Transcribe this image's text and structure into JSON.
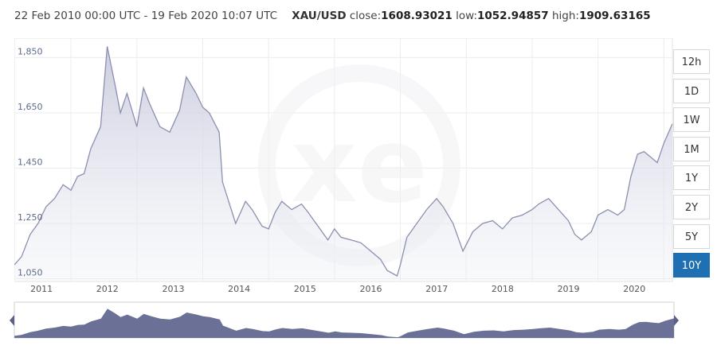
{
  "header": {
    "range": "22 Feb 2010 00:00 UTC - 19 Feb 2020 10:07 UTC",
    "symbol": "XAU/USD",
    "close_label": "close:",
    "close_value": "1608.93021",
    "low_label": "low:",
    "low_value": "1052.94857",
    "high_label": "high:",
    "high_value": "1909.63165"
  },
  "timeframes": [
    "12h",
    "1D",
    "1W",
    "1M",
    "1Y",
    "2Y",
    "5Y",
    "10Y"
  ],
  "active_timeframe": "10Y",
  "colors": {
    "line": "#8c8fb0",
    "accent": "#1f6fb3",
    "navigator": "#6b7196"
  },
  "chart_data": {
    "type": "area",
    "title": "",
    "xlabel": "",
    "ylabel": "",
    "x_ticks": [
      "2011",
      "2012",
      "2013",
      "2014",
      "2015",
      "2016",
      "2017",
      "2018",
      "2019",
      "2020"
    ],
    "y_ticks": [
      "1,050",
      "1,250",
      "1,450",
      "1,650",
      "1,850"
    ],
    "xlim": [
      2010.14,
      2020.13
    ],
    "ylim": [
      1040,
      1920
    ],
    "grid": true,
    "series": [
      {
        "x": [
          2010.14,
          2010.25,
          2010.38,
          2010.5,
          2010.62,
          2010.75,
          2010.88,
          2011.0,
          2011.1,
          2011.2,
          2011.3,
          2011.45,
          2011.55,
          2011.67,
          2011.75,
          2011.85,
          2012.0,
          2012.1,
          2012.2,
          2012.35,
          2012.5,
          2012.65,
          2012.75,
          2012.9,
          2013.0,
          2013.1,
          2013.25,
          2013.3,
          2013.5,
          2013.65,
          2013.75,
          2013.9,
          2014.0,
          2014.1,
          2014.2,
          2014.35,
          2014.5,
          2014.6,
          2014.75,
          2014.9,
          2015.0,
          2015.1,
          2015.25,
          2015.4,
          2015.55,
          2015.7,
          2015.8,
          2015.95,
          2016.0,
          2016.1,
          2016.25,
          2016.4,
          2016.55,
          2016.65,
          2016.8,
          2016.95,
          2017.1,
          2017.25,
          2017.4,
          2017.55,
          2017.7,
          2017.85,
          2018.0,
          2018.1,
          2018.25,
          2018.4,
          2018.55,
          2018.65,
          2018.75,
          2018.9,
          2019.0,
          2019.15,
          2019.3,
          2019.4,
          2019.5,
          2019.6,
          2019.7,
          2019.8,
          2019.9,
          2020.0,
          2020.13
        ],
        "values": [
          1100,
          1130,
          1210,
          1250,
          1310,
          1340,
          1390,
          1370,
          1420,
          1430,
          1520,
          1600,
          1890,
          1750,
          1650,
          1720,
          1600,
          1740,
          1680,
          1600,
          1580,
          1660,
          1780,
          1720,
          1670,
          1650,
          1580,
          1400,
          1250,
          1330,
          1300,
          1240,
          1230,
          1290,
          1330,
          1300,
          1320,
          1290,
          1240,
          1190,
          1230,
          1200,
          1190,
          1180,
          1150,
          1120,
          1080,
          1060,
          1100,
          1200,
          1250,
          1300,
          1340,
          1310,
          1250,
          1150,
          1220,
          1250,
          1260,
          1230,
          1270,
          1280,
          1300,
          1320,
          1340,
          1300,
          1260,
          1210,
          1190,
          1220,
          1280,
          1300,
          1280,
          1300,
          1420,
          1500,
          1510,
          1490,
          1470,
          1540,
          1610
        ]
      }
    ]
  }
}
